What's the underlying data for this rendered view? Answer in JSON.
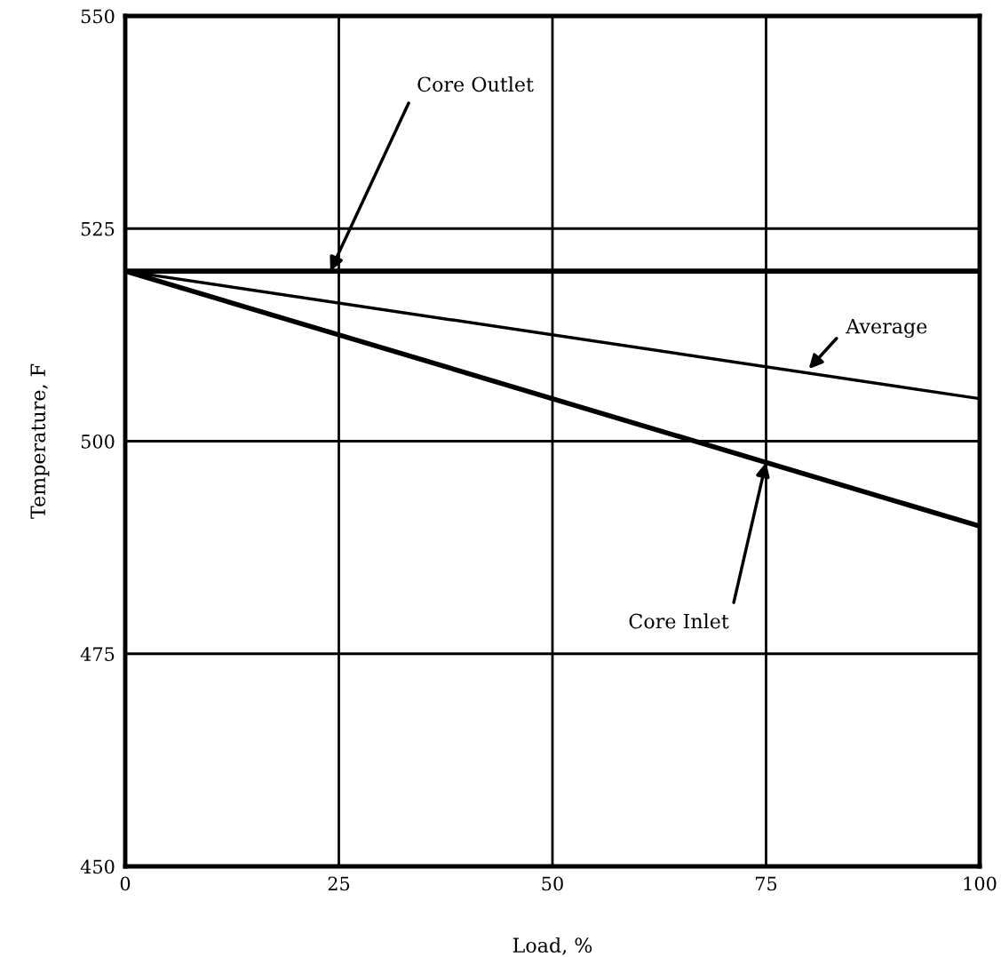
{
  "chart_data": {
    "type": "line",
    "xlabel": "Load, %",
    "ylabel": "Temperature, F",
    "x": [
      0,
      100
    ],
    "series": [
      {
        "color": "#000000",
        "values": [
          520,
          520
        ]
      },
      {
        "color": "#000000",
        "values": [
          520,
          505
        ]
      },
      {
        "color": "#000000",
        "values": [
          520,
          490
        ]
      }
    ],
    "xlim": [
      0,
      100
    ],
    "xticks": [
      0,
      25,
      50,
      75,
      100
    ],
    "ylim": [
      450,
      550
    ],
    "yticks": [
      450,
      475,
      500,
      525,
      550
    ],
    "grid": true,
    "marker": "none",
    "line_style": "solid",
    "annotations": [
      {
        "text": "Core Outlet",
        "x": 24,
        "y": 520
      },
      {
        "text": "Average",
        "x": 80,
        "y": 508.5
      },
      {
        "text": "Core Inlet",
        "x": 75,
        "y": 497.5
      }
    ]
  }
}
